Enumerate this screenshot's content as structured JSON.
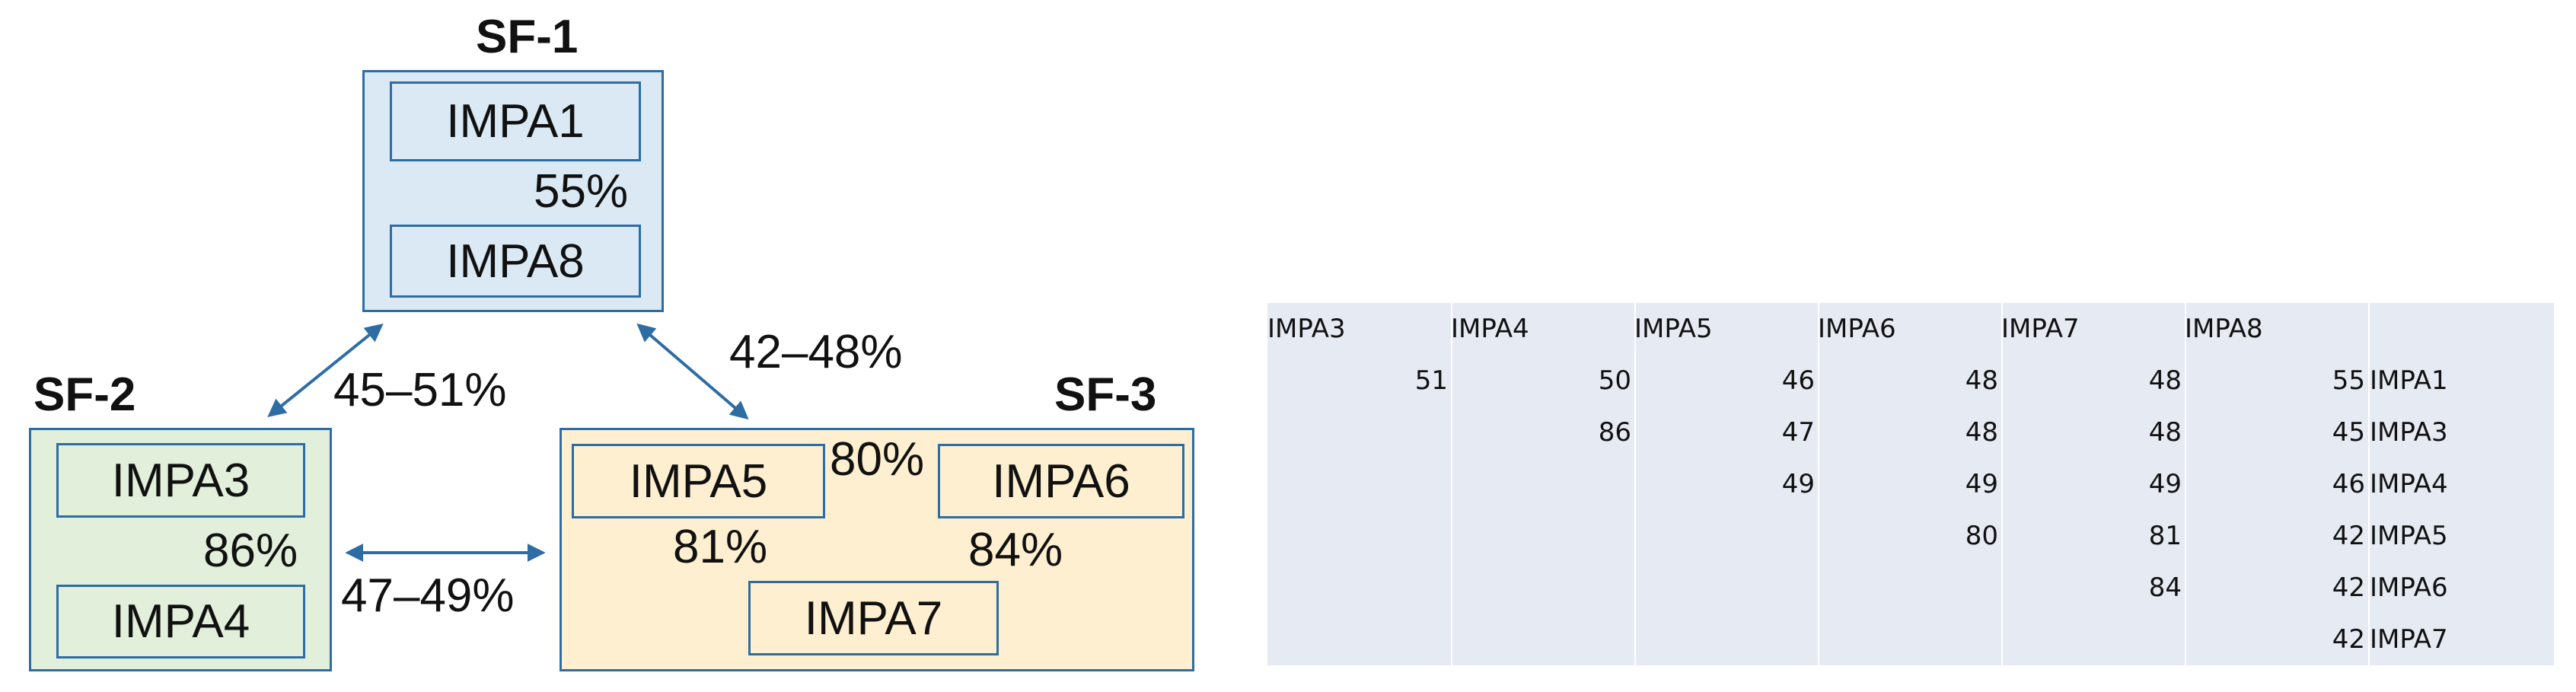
{
  "groups": [
    {
      "title": "SF-1",
      "nodes": [
        "IMPA1",
        "IMPA8"
      ],
      "inner_pct": "55%"
    },
    {
      "title": "SF-2",
      "nodes": [
        "IMPA3",
        "IMPA4"
      ],
      "inner_pct": "86%"
    },
    {
      "title": "SF-3",
      "nodes": [
        "IMPA5",
        "IMPA6",
        "IMPA7"
      ],
      "pcts": [
        "80%",
        "81%",
        "84%"
      ]
    }
  ],
  "links": {
    "sf1_sf2": "45–51%",
    "sf1_sf3": "42–48%",
    "sf2_sf3": "47–49%"
  },
  "colors": {
    "border": "#2e6da4",
    "sf1_fill": "#dbe9f5",
    "sf2_fill": "#e2efdb",
    "sf3_fill": "#fdefcf",
    "table_band": "#e6eaf3"
  },
  "matrix": {
    "columns": [
      "IMPA3",
      "IMPA4",
      "IMPA5",
      "IMPA6",
      "IMPA7",
      "IMPA8",
      ""
    ],
    "rows": [
      {
        "label": "IMPA1",
        "values": [
          "51",
          "50",
          "46",
          "48",
          "48",
          "55"
        ]
      },
      {
        "label": "IMPA3",
        "values": [
          "",
          "86",
          "47",
          "48",
          "48",
          "45"
        ]
      },
      {
        "label": "IMPA4",
        "values": [
          "",
          "",
          "49",
          "49",
          "49",
          "46"
        ]
      },
      {
        "label": "IMPA5",
        "values": [
          "",
          "",
          "",
          "80",
          "81",
          "42"
        ]
      },
      {
        "label": "IMPA6",
        "values": [
          "",
          "",
          "",
          "",
          "84",
          "42"
        ]
      },
      {
        "label": "IMPA7",
        "values": [
          "",
          "",
          "",
          "",
          "",
          "42"
        ]
      }
    ]
  }
}
